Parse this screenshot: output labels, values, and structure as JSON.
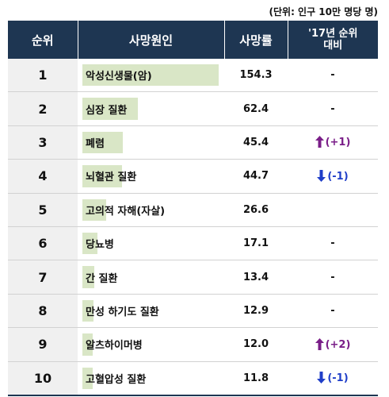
{
  "unit_note": "(단위: 인구 10만 명당 명)",
  "headers": {
    "rank": "순위",
    "cause": "사망원인",
    "rate": "사망률",
    "change_line1": "'17년 순위",
    "change_line2": "대비"
  },
  "colors": {
    "header_bg": "#1e3652",
    "bar": "#d9e6c6",
    "up": "#7a1e88",
    "down": "#1f3ec8"
  },
  "chart_data": {
    "type": "table",
    "columns": [
      "순위",
      "사망원인",
      "사망률",
      "'17년 순위 대비"
    ],
    "rows": [
      {
        "rank": "1",
        "cause": "악성신생물(암)",
        "rate": 154.3,
        "rate_text": "154.3",
        "change": "-",
        "dir": "none"
      },
      {
        "rank": "2",
        "cause": "심장 질환",
        "rate": 62.4,
        "rate_text": "62.4",
        "change": "-",
        "dir": "none"
      },
      {
        "rank": "3",
        "cause": "폐렴",
        "rate": 45.4,
        "rate_text": "45.4",
        "change": "(+1)",
        "dir": "up"
      },
      {
        "rank": "4",
        "cause": "뇌혈관 질환",
        "rate": 44.7,
        "rate_text": "44.7",
        "change": "(-1)",
        "dir": "down"
      },
      {
        "rank": "5",
        "cause": "고의적 자해(자살)",
        "rate": 26.6,
        "rate_text": "26.6",
        "change": "",
        "dir": "none"
      },
      {
        "rank": "6",
        "cause": "당뇨병",
        "rate": 17.1,
        "rate_text": "17.1",
        "change": "-",
        "dir": "none"
      },
      {
        "rank": "7",
        "cause": "간 질환",
        "rate": 13.4,
        "rate_text": "13.4",
        "change": "-",
        "dir": "none"
      },
      {
        "rank": "8",
        "cause": "만성 하기도 질환",
        "rate": 12.9,
        "rate_text": "12.9",
        "change": "-",
        "dir": "none"
      },
      {
        "rank": "9",
        "cause": "알츠하이머병",
        "rate": 12.0,
        "rate_text": "12.0",
        "change": "(+2)",
        "dir": "up"
      },
      {
        "rank": "10",
        "cause": "고혈압성 질환",
        "rate": 11.8,
        "rate_text": "11.8",
        "change": "(-1)",
        "dir": "down"
      }
    ]
  }
}
